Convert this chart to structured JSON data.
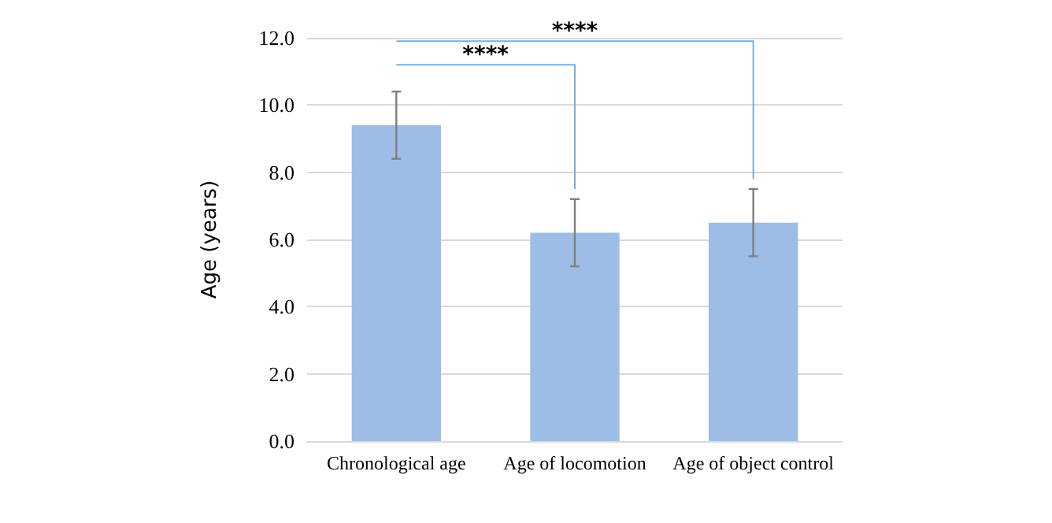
{
  "chart_data": {
    "type": "bar",
    "ylabel": "Age (years)",
    "categories": [
      "Chronological age",
      "Age of locomotion",
      "Age of object control"
    ],
    "values": [
      9.4,
      6.2,
      6.5
    ],
    "errors": [
      1.0,
      1.0,
      1.0
    ],
    "color": "#9dbde6",
    "ylim": [
      0,
      12
    ],
    "yticks": [
      {
        "value": 0,
        "label": "0.0"
      },
      {
        "value": 2,
        "label": "2.0"
      },
      {
        "value": 4,
        "label": "4.0"
      },
      {
        "value": 6,
        "label": "6.0"
      },
      {
        "value": 8,
        "label": "8.0"
      },
      {
        "value": 10,
        "label": "10.0"
      },
      {
        "value": 12,
        "label": "12.0"
      }
    ],
    "grid": "y",
    "annotations": [
      "****",
      "****"
    ]
  }
}
